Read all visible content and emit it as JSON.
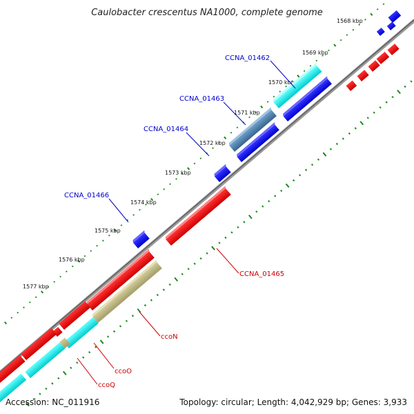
{
  "title": "Caulobacter crescentus NA1000, complete genome",
  "ticks": [
    "1568 kbp",
    "1569 kbp",
    "1570 kbp",
    "1571 kbp",
    "1572 kbp",
    "1573 kbp",
    "1574 kbp",
    "1575 kbp",
    "1576 kbp",
    "1577 kbp"
  ],
  "genes_forward": [
    "CCNA_01462",
    "CCNA_01463",
    "CCNA_01464",
    "CCNA_01466"
  ],
  "genes_reverse": [
    "CCNA_01465",
    "ccoN",
    "ccoO",
    "ccoQ"
  ],
  "footer": {
    "accession": "Accession: NC_011916",
    "summary": "Topology: circular; Length: 4,042,929 bp; Genes: 3,933"
  },
  "colors": {
    "forward_label": "#0000cc",
    "reverse_label": "#cc0000",
    "feature_blue": "#0000ee",
    "feature_cyan": "#00e5e5",
    "feature_red": "#ee0000",
    "feature_steel": "#4682b4",
    "feature_khaki": "#b8b07a",
    "backbone": "#888888",
    "dots": "#1a8a1a"
  }
}
